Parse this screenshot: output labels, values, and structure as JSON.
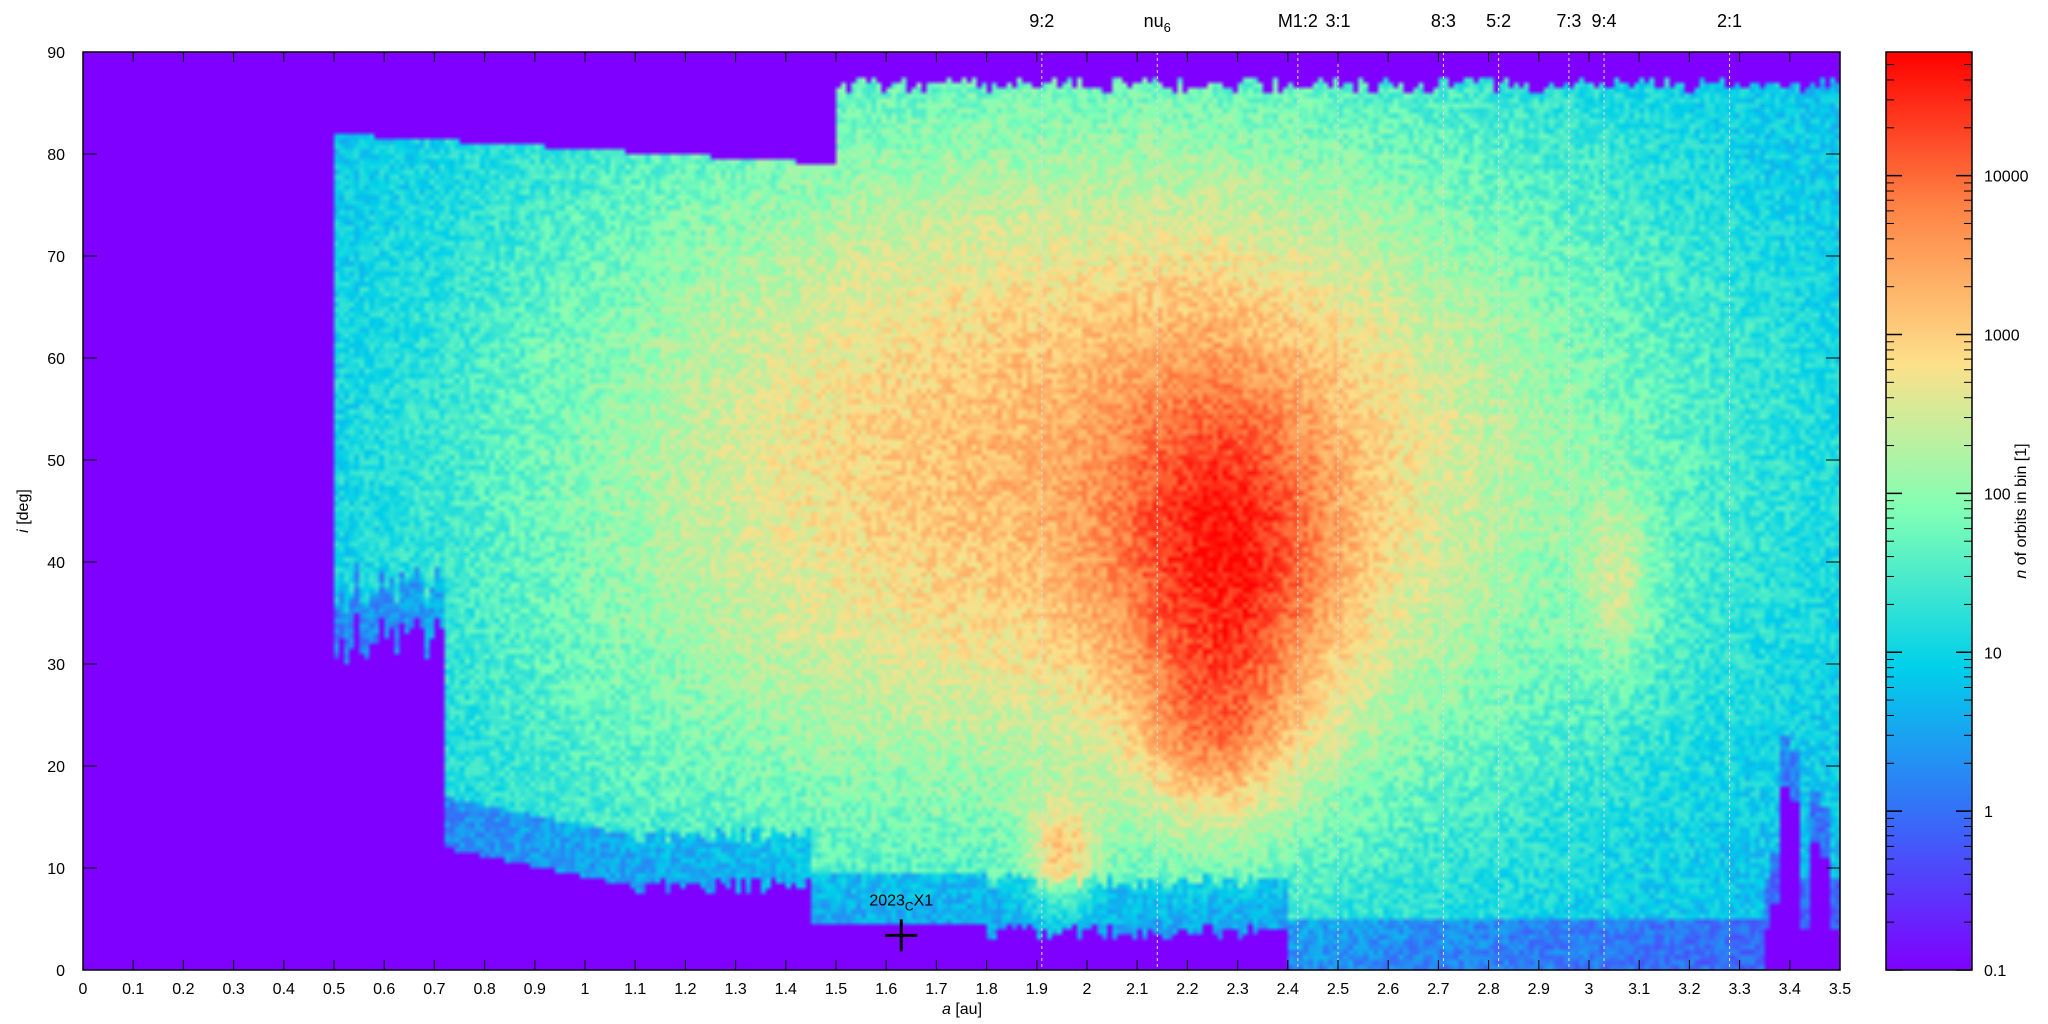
{
  "chart_data": {
    "type": "heatmap",
    "title": "",
    "xlabel": {
      "var": "a",
      "unit": "[au]"
    },
    "ylabel": {
      "var": "i",
      "unit": "[deg]"
    },
    "colorbar_label": {
      "var": "n",
      "rest": " of orbits in bin [1]"
    },
    "xlim": [
      0,
      3.5
    ],
    "ylim": [
      0,
      90
    ],
    "x_ticks": [
      "0",
      "0.1",
      "0.2",
      "0.3",
      "0.4",
      "0.5",
      "0.6",
      "0.7",
      "0.8",
      "0.9",
      "1",
      "1.1",
      "1.2",
      "1.3",
      "1.4",
      "1.5",
      "1.6",
      "1.7",
      "1.8",
      "1.9",
      "2",
      "2.1",
      "2.2",
      "2.3",
      "2.4",
      "2.5",
      "2.6",
      "2.7",
      "2.8",
      "2.9",
      "3",
      "3.1",
      "3.2",
      "3.3",
      "3.4",
      "3.5"
    ],
    "y_ticks": [
      "0",
      "10",
      "20",
      "30",
      "40",
      "50",
      "60",
      "70",
      "80",
      "90"
    ],
    "color_scale": {
      "type": "log",
      "min": 0.1,
      "max": 60000,
      "tick_labels": [
        "0.1",
        "1",
        "10",
        "100",
        "1000",
        "10000"
      ],
      "tick_values": [
        0.1,
        1,
        10,
        100,
        1000,
        10000
      ],
      "palette": [
        "#7f00ff",
        "#3a68f9",
        "#00d0ea",
        "#80ffb5",
        "#fde08a",
        "#fe8446",
        "#ff0000"
      ]
    },
    "resonances": [
      {
        "label": "9:2",
        "a": 1.91
      },
      {
        "label": "nu",
        "sub": "6",
        "a": 2.14
      },
      {
        "label": "M1:2",
        "a": 2.42
      },
      {
        "label": "3:1",
        "a": 2.5
      },
      {
        "label": "8:3",
        "a": 2.71
      },
      {
        "label": "5:2",
        "a": 2.82
      },
      {
        "label": "7:3",
        "a": 2.96
      },
      {
        "label": "9:4",
        "a": 3.03
      },
      {
        "label": "2:1",
        "a": 3.28
      }
    ],
    "marker": {
      "label": "2023",
      "sub": "C",
      "suffix": "X1",
      "a": 1.63,
      "i": 3.4
    },
    "density_hotspots": [
      {
        "a": 2.28,
        "i": 37,
        "n": 40000
      },
      {
        "a": 2.25,
        "i": 22,
        "n": 5000
      },
      {
        "a": 1.95,
        "i": 11,
        "n": 2000
      },
      {
        "a": 3.06,
        "i": 38,
        "n": 700
      }
    ],
    "grid": false,
    "colorbar_position": "right"
  }
}
